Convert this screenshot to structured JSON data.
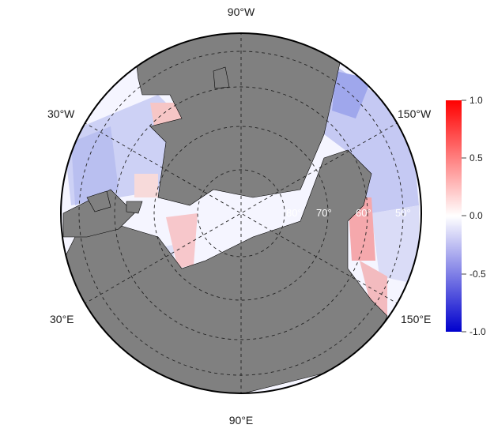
{
  "projection_labels": {
    "top": "90°W",
    "bottom": "90°E",
    "upper_left": "30°W",
    "upper_right": "150°W",
    "lower_left": "30°E",
    "lower_right": "150°E"
  },
  "latitude_labels": [
    "80°",
    "70°",
    "60°",
    "50°"
  ],
  "colorbar": {
    "ticks": [
      "1.0",
      "0.5",
      "0.0",
      "-0.5",
      "-1.0"
    ],
    "colors": {
      "max": "#ff0000",
      "mid": "#ffffff",
      "min": "#0000cd"
    }
  },
  "colors": {
    "land": "#808080",
    "border": "#000000",
    "ocean_default": "#ffffff"
  }
}
